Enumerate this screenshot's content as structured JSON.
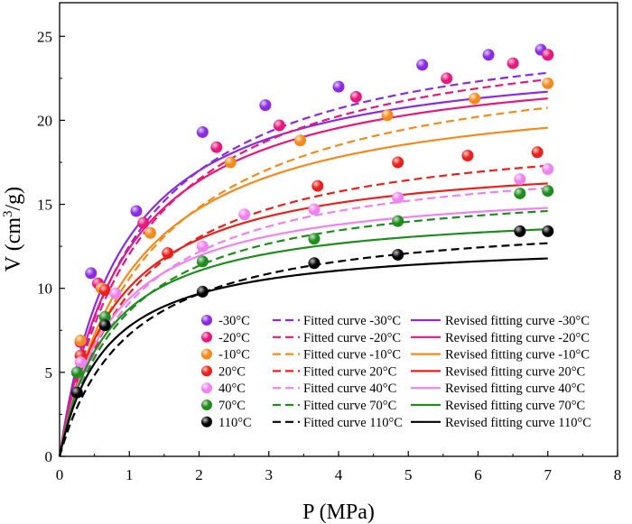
{
  "chart_data": {
    "type": "scatter",
    "xlabel": "P (MPa)",
    "ylabel_main": "V (cm",
    "ylabel_sup": "3",
    "ylabel_end": "/g)",
    "xlim": [
      0,
      8
    ],
    "ylim": [
      0,
      27
    ],
    "xticks": [
      "0",
      "1",
      "2",
      "3",
      "4",
      "5",
      "6",
      "7",
      "8"
    ],
    "yticks": [
      "0",
      "5",
      "10",
      "15",
      "20",
      "25"
    ],
    "grid": false,
    "legend_position": "bottom-right",
    "legend_label_prefixes": {
      "fitted": "Fitted curve",
      "revised": "Revised fitting curve"
    },
    "series": [
      {
        "name": "-30°C",
        "color": "#8a2be2",
        "points": [
          [
            0.45,
            10.9
          ],
          [
            1.1,
            14.6
          ],
          [
            2.05,
            19.3
          ],
          [
            2.95,
            20.9
          ],
          [
            4.0,
            22.0
          ],
          [
            5.2,
            23.3
          ],
          [
            6.15,
            23.9
          ],
          [
            6.9,
            24.2
          ],
          [
            7.0,
            23.9
          ]
        ],
        "fitted_qm": 26.45,
        "fitted_b": 0.9,
        "revised_qm": 24.4,
        "revised_b": 1.15
      },
      {
        "name": "-20°C",
        "color": "#e6177d",
        "points": [
          [
            0.3,
            6.8
          ],
          [
            0.55,
            10.3
          ],
          [
            1.2,
            13.9
          ],
          [
            2.25,
            18.4
          ],
          [
            3.15,
            19.7
          ],
          [
            4.25,
            21.4
          ],
          [
            5.55,
            22.5
          ],
          [
            6.5,
            23.4
          ],
          [
            7.0,
            23.9
          ]
        ],
        "fitted_qm": 26.2,
        "fitted_b": 0.85,
        "revised_qm": 24.2,
        "revised_b": 1.05
      },
      {
        "name": "-10°C",
        "color": "#f28a1e",
        "points": [
          [
            0.3,
            6.9
          ],
          [
            0.6,
            10.0
          ],
          [
            1.3,
            13.3
          ],
          [
            2.45,
            17.5
          ],
          [
            3.45,
            18.8
          ],
          [
            4.7,
            20.3
          ],
          [
            5.95,
            21.3
          ],
          [
            7.0,
            22.2
          ]
        ],
        "fitted_qm": 24.7,
        "fitted_b": 0.75,
        "revised_qm": 22.5,
        "revised_b": 0.95
      },
      {
        "name": "20°C",
        "color": "#e8211d",
        "points": [
          [
            0.3,
            6.0
          ],
          [
            0.65,
            9.9
          ],
          [
            1.55,
            12.1
          ],
          [
            3.7,
            16.1
          ],
          [
            4.85,
            17.5
          ],
          [
            5.85,
            17.9
          ],
          [
            6.85,
            18.1
          ]
        ],
        "fitted_qm": 19.9,
        "fitted_b": 0.95,
        "revised_qm": 18.1,
        "revised_b": 1.25
      },
      {
        "name": "40°C",
        "color": "#ee82ee",
        "points": [
          [
            0.3,
            5.6
          ],
          [
            0.8,
            9.7
          ],
          [
            2.05,
            12.5
          ],
          [
            2.65,
            14.4
          ],
          [
            3.65,
            14.7
          ],
          [
            4.85,
            15.4
          ],
          [
            6.6,
            16.5
          ],
          [
            7.0,
            17.1
          ]
        ],
        "fitted_qm": 18.25,
        "fitted_b": 1.0,
        "revised_qm": 16.35,
        "revised_b": 1.35
      },
      {
        "name": "70°C",
        "color": "#1f8c1f",
        "points": [
          [
            0.25,
            5.0
          ],
          [
            0.65,
            8.3
          ],
          [
            2.05,
            11.6
          ],
          [
            3.65,
            12.95
          ],
          [
            4.85,
            14.0
          ],
          [
            6.6,
            15.65
          ],
          [
            7.0,
            15.8
          ]
        ],
        "fitted_qm": 16.5,
        "fitted_b": 1.1,
        "revised_qm": 14.85,
        "revised_b": 1.45
      },
      {
        "name": "110°C",
        "color": "#000000",
        "points": [
          [
            0.25,
            3.8
          ],
          [
            0.65,
            7.8
          ],
          [
            2.05,
            9.8
          ],
          [
            3.65,
            11.5
          ],
          [
            4.85,
            12.0
          ],
          [
            6.6,
            13.4
          ],
          [
            7.0,
            13.4
          ]
        ],
        "fitted_qm": 14.5,
        "fitted_b": 1.0,
        "revised_qm": 12.9,
        "revised_b": 1.5
      }
    ]
  }
}
